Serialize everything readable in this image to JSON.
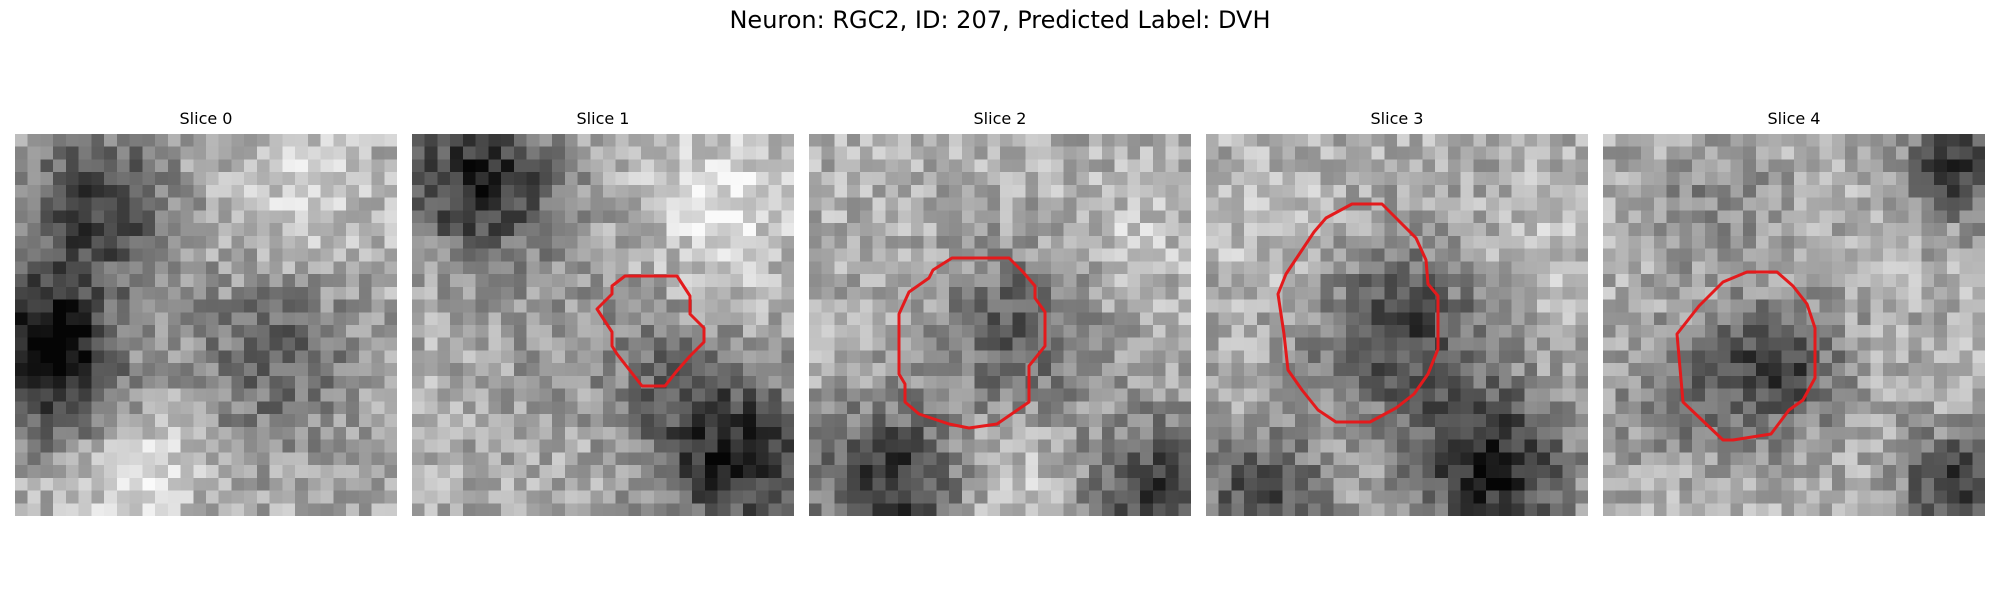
{
  "figure": {
    "title": "Neuron: RGC2, ID: 207, Predicted Label: DVH",
    "colormap": "gray",
    "contour_color": "#e41a1c",
    "grid_size": 30,
    "slices": [
      {
        "label": "Slice 0",
        "has_contour": false
      },
      {
        "label": "Slice 1",
        "has_contour": true
      },
      {
        "label": "Slice 2",
        "has_contour": true
      },
      {
        "label": "Slice 3",
        "has_contour": true
      },
      {
        "label": "Slice 4",
        "has_contour": true
      }
    ]
  }
}
